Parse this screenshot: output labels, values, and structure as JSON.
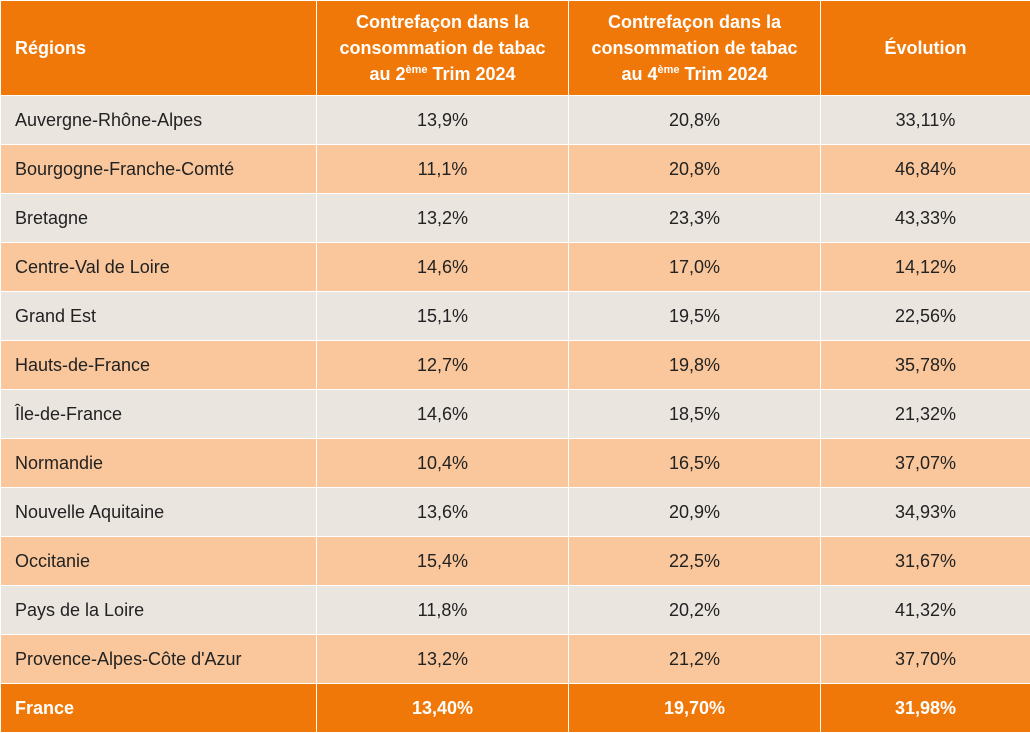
{
  "chart_data": {
    "type": "table",
    "columns": {
      "region": "Régions",
      "q2": {
        "line1": "Contrefaçon  dans la",
        "line2": "consommation de tabac",
        "pre": "au  2",
        "sup": "ème",
        "post": " Trim 2024"
      },
      "q4": {
        "line1": "Contrefaçon dans la",
        "line2": "consommation de tabac",
        "pre": "au  4",
        "sup": "ème",
        "post": " Trim 2024"
      },
      "evolution": "Évolution"
    },
    "rows": [
      {
        "region": "Auvergne-Rhône-Alpes",
        "q2": "13,9%",
        "q4": "20,8%",
        "evolution": "33,11%"
      },
      {
        "region": "Bourgogne-Franche-Comté",
        "q2": "11,1%",
        "q4": "20,8%",
        "evolution": "46,84%"
      },
      {
        "region": "Bretagne",
        "q2": "13,2%",
        "q4": "23,3%",
        "evolution": "43,33%"
      },
      {
        "region": "Centre-Val de Loire",
        "q2": "14,6%",
        "q4": "17,0%",
        "evolution": "14,12%"
      },
      {
        "region": "Grand Est",
        "q2": "15,1%",
        "q4": "19,5%",
        "evolution": "22,56%"
      },
      {
        "region": "Hauts-de-France",
        "q2": "12,7%",
        "q4": "19,8%",
        "evolution": "35,78%"
      },
      {
        "region": "Île-de-France",
        "q2": "14,6%",
        "q4": "18,5%",
        "evolution": "21,32%"
      },
      {
        "region": "Normandie",
        "q2": "10,4%",
        "q4": "16,5%",
        "evolution": "37,07%"
      },
      {
        "region": "Nouvelle Aquitaine",
        "q2": "13,6%",
        "q4": "20,9%",
        "evolution": "34,93%"
      },
      {
        "region": "Occitanie",
        "q2": "15,4%",
        "q4": "22,5%",
        "evolution": "31,67%"
      },
      {
        "region": "Pays de la Loire",
        "q2": "11,8%",
        "q4": "20,2%",
        "evolution": "41,32%"
      },
      {
        "region": "Provence-Alpes-Côte d'Azur",
        "q2": "13,2%",
        "q4": "21,2%",
        "evolution": "37,70%"
      }
    ],
    "total": {
      "region": "France",
      "q2": "13,40%",
      "q4": "19,70%",
      "evolution": "31,98%"
    }
  },
  "colors": {
    "header_bg": "#f07808",
    "row_light": "#ebe5e0",
    "row_dark": "#f9c79b",
    "total_bg": "#f07808"
  }
}
